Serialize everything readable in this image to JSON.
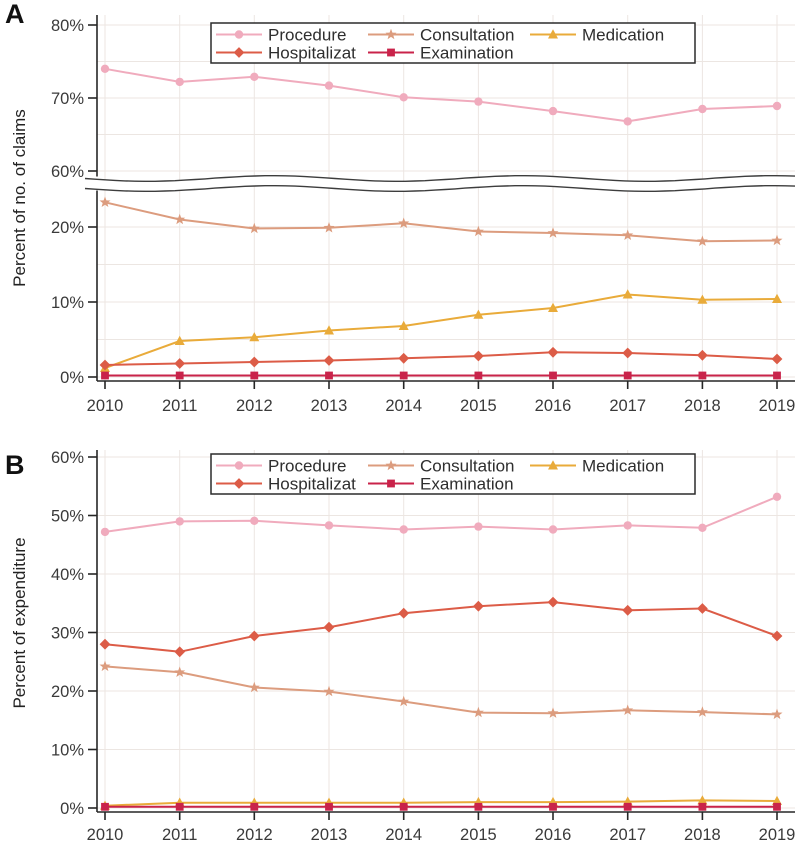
{
  "chart_data": [
    {
      "panel_label": "A",
      "type": "line",
      "title": "",
      "xlabel": "",
      "ylabel": "Percent of no. of claims",
      "y_unit": "%",
      "x_ticks": [
        "2010",
        "2011",
        "2012",
        "2013",
        "2014",
        "2015",
        "2016",
        "2017",
        "2018",
        "2019"
      ],
      "y_axis": {
        "broken": true,
        "upper_ticks": [
          80,
          70,
          60
        ],
        "lower_ticks": [
          20,
          10,
          0
        ],
        "grid": "on",
        "legend_position": "top-center"
      },
      "series": [
        {
          "name": "Procedure",
          "color": "#f0abbd",
          "marker": "circle",
          "values": [
            74.0,
            72.2,
            72.9,
            71.7,
            70.1,
            69.5,
            68.2,
            66.8,
            68.5,
            68.9
          ]
        },
        {
          "name": "Consultation",
          "color": "#dc9c7e",
          "marker": "star",
          "values": [
            23.3,
            21.0,
            19.8,
            19.9,
            20.5,
            19.4,
            19.2,
            18.9,
            18.1,
            18.2
          ]
        },
        {
          "name": "Medication",
          "color": "#e9ab3a",
          "marker": "triangle",
          "values": [
            1.2,
            4.8,
            5.3,
            6.2,
            6.8,
            8.3,
            9.2,
            11.0,
            10.3,
            10.4
          ]
        },
        {
          "name": "Hospitalizat",
          "color": "#dc5c47",
          "marker": "diamond",
          "values": [
            1.6,
            1.8,
            2.0,
            2.2,
            2.5,
            2.8,
            3.3,
            3.2,
            2.9,
            2.4
          ]
        },
        {
          "name": "Examination",
          "color": "#c9234a",
          "marker": "square",
          "values": [
            0.2,
            0.2,
            0.2,
            0.2,
            0.2,
            0.2,
            0.2,
            0.2,
            0.2,
            0.2
          ]
        }
      ],
      "legend_rows": [
        [
          "Procedure",
          "Consultation",
          "Medication"
        ],
        [
          "Hospitalizat",
          "Examination"
        ]
      ]
    },
    {
      "panel_label": "B",
      "type": "line",
      "title": "",
      "xlabel": "",
      "ylabel": "Percent of expenditure",
      "y_unit": "%",
      "x_ticks": [
        "2010",
        "2011",
        "2012",
        "2013",
        "2014",
        "2015",
        "2016",
        "2017",
        "2018",
        "2019"
      ],
      "y_axis": {
        "broken": false,
        "ticks": [
          60,
          50,
          40,
          30,
          20,
          10,
          0
        ],
        "grid": "on",
        "legend_position": "top-center"
      },
      "series": [
        {
          "name": "Procedure",
          "color": "#f0abbd",
          "marker": "circle",
          "values": [
            47.2,
            49.0,
            49.1,
            48.3,
            47.6,
            48.1,
            47.6,
            48.3,
            47.9,
            53.2
          ]
        },
        {
          "name": "Consultation",
          "color": "#dc9c7e",
          "marker": "star",
          "values": [
            24.2,
            23.2,
            20.6,
            19.9,
            18.2,
            16.3,
            16.2,
            16.7,
            16.4,
            16.0
          ]
        },
        {
          "name": "Medication",
          "color": "#e9ab3a",
          "marker": "triangle",
          "values": [
            0.4,
            0.9,
            0.9,
            0.9,
            0.9,
            1.0,
            1.0,
            1.1,
            1.3,
            1.2
          ]
        },
        {
          "name": "Hospitalizat",
          "color": "#dc5c47",
          "marker": "diamond",
          "values": [
            28.0,
            26.7,
            29.4,
            30.9,
            33.3,
            34.5,
            35.2,
            33.8,
            34.1,
            29.4
          ]
        },
        {
          "name": "Examination",
          "color": "#c9234a",
          "marker": "square",
          "values": [
            0.2,
            0.2,
            0.2,
            0.2,
            0.2,
            0.2,
            0.2,
            0.2,
            0.2,
            0.2
          ]
        }
      ],
      "legend_rows": [
        [
          "Procedure",
          "Consultation",
          "Medication"
        ],
        [
          "Hospitalizat",
          "Examination"
        ]
      ]
    }
  ],
  "style": {
    "grid_color": "#ece6e2",
    "axis_color": "#262626",
    "tick_label_color": "#3a3a3a",
    "legend_text_color": "#2e2e2e",
    "break_wave_color": "#3d3d3d"
  }
}
